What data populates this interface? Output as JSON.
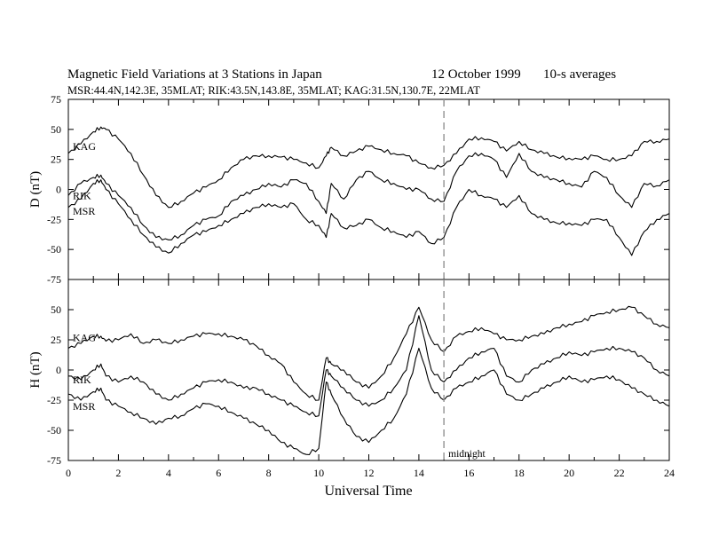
{
  "header": {
    "title": "Magnetic Field Variations at 3 Stations in Japan",
    "date": "12 October 1999",
    "averaging": "10-s averages",
    "stations_line": "MSR:44.4N,142.3E, 35MLAT;  RIK:43.5N,143.8E, 35MLAT;  KAG:31.5N,130.7E, 22MLAT"
  },
  "chart_data": [
    {
      "type": "line",
      "panel": "D",
      "ylabel": "D (nT)",
      "ylim": [
        -75,
        75
      ],
      "yticks": [
        75,
        50,
        25,
        0,
        -25,
        -50,
        -75
      ],
      "xlim": [
        0,
        24
      ],
      "x": [
        0,
        0.5,
        1,
        1.3,
        1.5,
        2,
        2.5,
        3,
        3.5,
        4,
        4.5,
        5,
        5.5,
        6,
        6.5,
        7,
        7.5,
        8,
        8.5,
        9,
        9.5,
        10,
        10.3,
        10.5,
        11,
        11.5,
        12,
        12.5,
        13,
        13.5,
        14,
        14.5,
        15,
        15.5,
        16,
        16.5,
        17,
        17.5,
        18,
        18.5,
        19,
        19.5,
        20,
        20.5,
        21,
        21.5,
        22,
        22.5,
        23,
        23.5,
        24
      ],
      "series": [
        {
          "name": "KAG",
          "label_y": 36,
          "values": [
            30,
            38,
            48,
            52,
            50,
            42,
            30,
            12,
            -5,
            -15,
            -10,
            -3,
            2,
            8,
            18,
            25,
            28,
            28,
            27,
            25,
            22,
            18,
            28,
            35,
            28,
            32,
            36,
            33,
            30,
            28,
            22,
            18,
            20,
            30,
            42,
            43,
            40,
            32,
            40,
            33,
            30,
            27,
            26,
            25,
            28,
            25,
            25,
            28,
            40,
            40,
            42
          ]
        },
        {
          "name": "RIK",
          "label_y": -5,
          "values": [
            -5,
            5,
            10,
            12,
            5,
            -5,
            -15,
            -30,
            -40,
            -42,
            -38,
            -30,
            -25,
            -22,
            -10,
            -5,
            0,
            5,
            2,
            8,
            5,
            -10,
            -20,
            5,
            -8,
            8,
            15,
            8,
            5,
            0,
            0,
            -8,
            -10,
            15,
            28,
            30,
            25,
            10,
            30,
            15,
            10,
            8,
            5,
            2,
            15,
            10,
            -5,
            -15,
            5,
            3,
            8
          ]
        },
        {
          "name": "MSR",
          "label_y": -18,
          "values": [
            -15,
            -8,
            5,
            8,
            0,
            -12,
            -25,
            -38,
            -48,
            -53,
            -45,
            -38,
            -35,
            -30,
            -25,
            -20,
            -15,
            -12,
            -15,
            -12,
            -25,
            -30,
            -40,
            -20,
            -32,
            -30,
            -25,
            -32,
            -35,
            -40,
            -35,
            -45,
            -40,
            -15,
            0,
            -5,
            -8,
            -15,
            -5,
            -20,
            -25,
            -28,
            -28,
            -30,
            -25,
            -25,
            -40,
            -55,
            -35,
            -25,
            -20
          ]
        }
      ]
    },
    {
      "type": "line",
      "panel": "H",
      "ylabel": "H (nT)",
      "ylim": [
        -75,
        75
      ],
      "yticks": [
        50,
        25,
        0,
        -25,
        -50,
        -75
      ],
      "xlim": [
        0,
        24
      ],
      "xticks": [
        0,
        2,
        4,
        6,
        8,
        10,
        12,
        14,
        16,
        18,
        20,
        22,
        24
      ],
      "xlabel": "Universal Time",
      "x": [
        0,
        0.5,
        1,
        1.3,
        1.5,
        2,
        2.5,
        3,
        3.5,
        4,
        4.5,
        5,
        5.5,
        6,
        6.5,
        7,
        7.5,
        8,
        8.5,
        9,
        9.5,
        10,
        10.3,
        10.5,
        11,
        11.5,
        12,
        12.5,
        13,
        13.5,
        14,
        14.5,
        15,
        15.5,
        16,
        16.5,
        17,
        17.5,
        18,
        18.5,
        19,
        19.5,
        20,
        20.5,
        21,
        21.5,
        22,
        22.5,
        23,
        23.5,
        24
      ],
      "series": [
        {
          "name": "KAG",
          "label_y": 27,
          "values": [
            18,
            22,
            28,
            28,
            24,
            25,
            30,
            22,
            25,
            22,
            25,
            28,
            30,
            30,
            28,
            25,
            20,
            12,
            5,
            -10,
            -20,
            -25,
            10,
            5,
            0,
            -10,
            -15,
            -5,
            10,
            30,
            52,
            25,
            15,
            28,
            32,
            35,
            30,
            25,
            25,
            28,
            30,
            35,
            38,
            40,
            45,
            48,
            50,
            52,
            45,
            38,
            35
          ]
        },
        {
          "name": "RIK",
          "label_y": -8,
          "values": [
            -5,
            -8,
            0,
            5,
            -5,
            -10,
            -5,
            -10,
            -20,
            -25,
            -20,
            -15,
            -10,
            -8,
            -10,
            -15,
            -15,
            -20,
            -25,
            -30,
            -35,
            -38,
            0,
            -5,
            -15,
            -25,
            -30,
            -25,
            -15,
            0,
            45,
            0,
            -10,
            0,
            10,
            15,
            18,
            -5,
            -10,
            0,
            5,
            10,
            15,
            12,
            15,
            18,
            18,
            15,
            10,
            0,
            -5
          ]
        },
        {
          "name": "MSR",
          "label_y": -30,
          "values": [
            -20,
            -25,
            -18,
            -15,
            -25,
            -30,
            -35,
            -40,
            -45,
            -40,
            -38,
            -32,
            -28,
            -30,
            -35,
            -40,
            -45,
            -50,
            -60,
            -65,
            -70,
            -65,
            -10,
            -20,
            -40,
            -55,
            -60,
            -50,
            -40,
            -20,
            18,
            -15,
            -25,
            -15,
            -10,
            -5,
            0,
            -20,
            -25,
            -20,
            -15,
            -10,
            -5,
            -10,
            -8,
            -5,
            -8,
            -15,
            -20,
            -25,
            -30
          ]
        }
      ],
      "marker": {
        "x": 15,
        "label": "midnight"
      }
    }
  ]
}
